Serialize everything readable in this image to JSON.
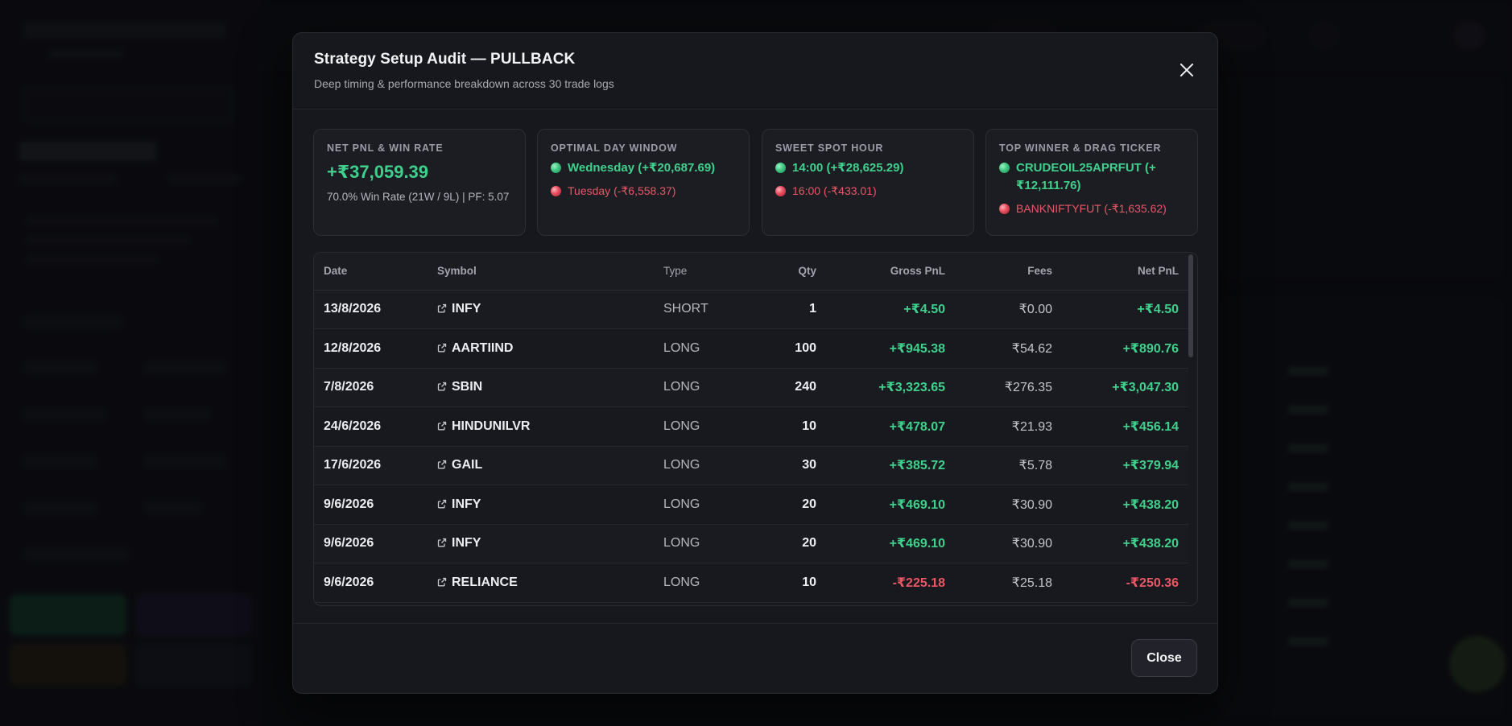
{
  "modal": {
    "title": "Strategy Setup Audit — PULLBACK",
    "subtitle": "Deep timing & performance breakdown across 30 trade logs",
    "close_label": "Close"
  },
  "cards": {
    "net_pnl": {
      "label": "NET PNL & WIN RATE",
      "value": "+₹37,059.39",
      "note": "70.0% Win Rate (21W / 9L) | PF: 5.07"
    },
    "day_window": {
      "label": "OPTIMAL DAY WINDOW",
      "best": "Wednesday (+₹20,687.69)",
      "worst": "Tuesday (-₹6,558.37)"
    },
    "sweet_spot": {
      "label": "SWEET SPOT HOUR",
      "best": "14:00 (+₹28,625.29)",
      "worst": "16:00 (-₹433.01)"
    },
    "ticker": {
      "label": "TOP WINNER & DRAG TICKER",
      "best": "CRUDEOIL25APRFUT (+₹12,111.76)",
      "worst": "BANKNIFTYFUT (-₹1,635.62)"
    }
  },
  "table": {
    "headers": {
      "date": "Date",
      "symbol": "Symbol",
      "type": "Type",
      "qty": "Qty",
      "gross": "Gross PnL",
      "fees": "Fees",
      "net": "Net PnL"
    },
    "rows": [
      {
        "date": "13/8/2026",
        "symbol": "INFY",
        "type": "SHORT",
        "qty": "1",
        "gross": "+₹4.50",
        "fees": "₹0.00",
        "net": "+₹4.50"
      },
      {
        "date": "12/8/2026",
        "symbol": "AARTIIND",
        "type": "LONG",
        "qty": "100",
        "gross": "+₹945.38",
        "fees": "₹54.62",
        "net": "+₹890.76"
      },
      {
        "date": "7/8/2026",
        "symbol": "SBIN",
        "type": "LONG",
        "qty": "240",
        "gross": "+₹3,323.65",
        "fees": "₹276.35",
        "net": "+₹3,047.30"
      },
      {
        "date": "24/6/2026",
        "symbol": "HINDUNILVR",
        "type": "LONG",
        "qty": "10",
        "gross": "+₹478.07",
        "fees": "₹21.93",
        "net": "+₹456.14"
      },
      {
        "date": "17/6/2026",
        "symbol": "GAIL",
        "type": "LONG",
        "qty": "30",
        "gross": "+₹385.72",
        "fees": "₹5.78",
        "net": "+₹379.94"
      },
      {
        "date": "9/6/2026",
        "symbol": "INFY",
        "type": "LONG",
        "qty": "20",
        "gross": "+₹469.10",
        "fees": "₹30.90",
        "net": "+₹438.20"
      },
      {
        "date": "9/6/2026",
        "symbol": "INFY",
        "type": "LONG",
        "qty": "20",
        "gross": "+₹469.10",
        "fees": "₹30.90",
        "net": "+₹438.20"
      },
      {
        "date": "9/6/2026",
        "symbol": "RELIANCE",
        "type": "LONG",
        "qty": "10",
        "gross": "-₹225.18",
        "fees": "₹25.18",
        "net": "-₹250.36"
      }
    ]
  },
  "colors": {
    "positive": "#3fd08c",
    "negative": "#ea5766",
    "modal_bg": "#17181d"
  },
  "icons": {
    "close": "close-icon",
    "symbol_link": "external-link-icon",
    "good_dot": "green-dot-icon",
    "bad_dot": "red-dot-icon"
  }
}
